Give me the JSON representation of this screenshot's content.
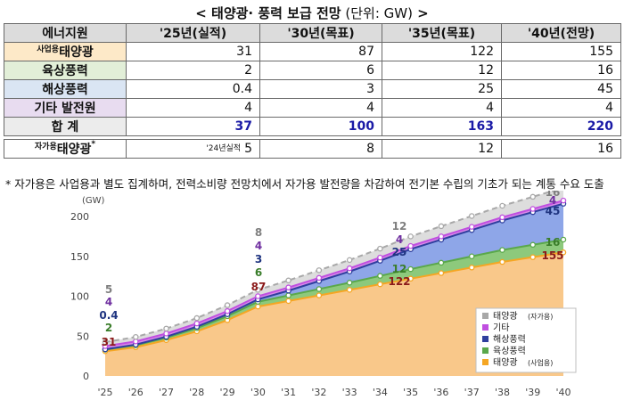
{
  "title": {
    "main": "< 태양광· 풍력 보급 전망",
    "unit": " (단위: GW)",
    "end": " >"
  },
  "table": {
    "headers": [
      "에너지원",
      "'25년(실적)",
      "'30년(목표)",
      "'35년(목표)",
      "'40년(전망)"
    ],
    "rows": [
      {
        "prefix": "사업용",
        "label": "태양광",
        "values": [
          "31",
          "87",
          "122",
          "155"
        ],
        "bg": "#fde9c8"
      },
      {
        "prefix": "",
        "label": "육상풍력",
        "values": [
          "2",
          "6",
          "12",
          "16"
        ],
        "bg": "#e2efd8"
      },
      {
        "prefix": "",
        "label": "해상풍력",
        "values": [
          "0.4",
          "3",
          "25",
          "45"
        ],
        "bg": "#dae5f3"
      },
      {
        "prefix": "",
        "label": "기타 발전원",
        "values": [
          "4",
          "4",
          "4",
          "4"
        ],
        "bg": "#e8dcf0"
      },
      {
        "prefix": "",
        "label": "합 계",
        "values": [
          "37",
          "100",
          "163",
          "220"
        ],
        "bg": "#ececec"
      }
    ],
    "self_row": {
      "prefix": "자가용",
      "label": "태양광",
      "suffix": "*",
      "note": "'24년실적",
      "values": [
        "5",
        "8",
        "12",
        "16"
      ]
    }
  },
  "footnote": "* 자가용은 사업용과 별도 집계하며, 전력소비량 전망치에서 자가용 발전량을 차감하여 전기본 수립의 기초가 되는 계통 수요 도출",
  "chart_data": {
    "type": "area",
    "ylabel": "(GW)",
    "ylim": [
      0,
      240
    ],
    "yticks": [
      0,
      50,
      100,
      150,
      200
    ],
    "categories": [
      "'25",
      "'26",
      "'27",
      "'28",
      "'29",
      "'30",
      "'31",
      "'32",
      "'33",
      "'34",
      "'35",
      "'36",
      "'37",
      "'38",
      "'39",
      "'40"
    ],
    "stack_order": [
      "사업용 태양광",
      "육상풍력",
      "해상풍력",
      "기타"
    ],
    "series": [
      {
        "name": "사업용 태양광",
        "legend": "태양광",
        "legend_note": "(사업용)",
        "color": "#f5a623",
        "fill": "#f9c88a",
        "values": [
          31,
          36,
          45,
          56,
          70,
          87,
          94,
          101,
          108,
          115,
          122,
          129,
          136,
          143,
          149,
          155
        ]
      },
      {
        "name": "육상풍력",
        "legend": "육상풍력",
        "legend_note": "",
        "color": "#5aa84b",
        "fill": "#8dc97c",
        "values": [
          2,
          2.5,
          3,
          4,
          5,
          6,
          7,
          8,
          9,
          10.5,
          12,
          13,
          14,
          15,
          15.5,
          16
        ]
      },
      {
        "name": "해상풍력",
        "legend": "해상풍력",
        "legend_note": "",
        "color": "#2f3f9e",
        "fill": "#8ea6e8",
        "values": [
          0.4,
          0.8,
          1.2,
          1.8,
          2.4,
          3,
          6,
          10,
          14,
          19,
          25,
          29,
          33,
          37,
          41,
          45
        ]
      },
      {
        "name": "기타",
        "legend": "기타",
        "legend_note": "",
        "color": "#c04fe0",
        "fill": "#d98ae8",
        "values": [
          4,
          4,
          4,
          4,
          4,
          4,
          4,
          4,
          4,
          4,
          4,
          4,
          4,
          4,
          4,
          4
        ]
      },
      {
        "name": "태양광 (자가용)",
        "legend": "태양광",
        "legend_note": "(자가용)",
        "color": "#a8a8a8",
        "fill": "#d9d9d9",
        "values": [
          5,
          5.6,
          6.2,
          6.8,
          7.4,
          8,
          8.8,
          9.6,
          10.4,
          11.2,
          12,
          12.8,
          13.6,
          14.4,
          15.2,
          16
        ]
      }
    ],
    "legend_position": "bottom-right",
    "annotations": [
      {
        "x": "'25",
        "labels": [
          {
            "text": "5",
            "color": "#7f7f7f"
          },
          {
            "text": "4",
            "color": "#7030a0"
          },
          {
            "text": "0.4",
            "color": "#1f3480"
          },
          {
            "text": "2",
            "color": "#3a7d2a"
          },
          {
            "text": "31",
            "color": "#8b1a1a"
          }
        ]
      },
      {
        "x": "'30",
        "labels": [
          {
            "text": "8",
            "color": "#7f7f7f"
          },
          {
            "text": "4",
            "color": "#7030a0"
          },
          {
            "text": "3",
            "color": "#1f3480"
          },
          {
            "text": "6",
            "color": "#3a7d2a"
          },
          {
            "text": "87",
            "color": "#8b1a1a"
          }
        ]
      },
      {
        "x": "'35",
        "labels": [
          {
            "text": "12",
            "color": "#7f7f7f"
          },
          {
            "text": "4",
            "color": "#7030a0"
          },
          {
            "text": "25",
            "color": "#1f3480"
          },
          {
            "text": "12",
            "color": "#3a7d2a"
          },
          {
            "text": "122",
            "color": "#8b1a1a"
          }
        ]
      },
      {
        "x": "'40",
        "labels": [
          {
            "text": "16",
            "color": "#7f7f7f"
          },
          {
            "text": "4",
            "color": "#7030a0"
          },
          {
            "text": "45",
            "color": "#1f3480"
          },
          {
            "text": "16",
            "color": "#3a7d2a"
          },
          {
            "text": "155",
            "color": "#8b1a1a"
          }
        ]
      }
    ]
  }
}
